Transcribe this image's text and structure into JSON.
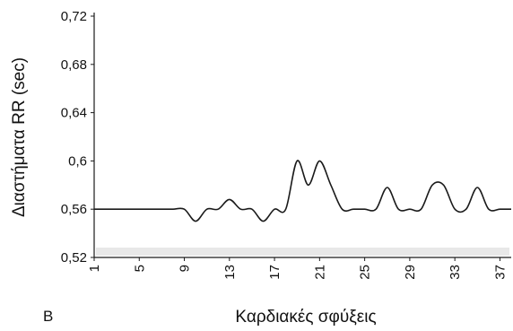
{
  "chart_data": {
    "type": "line",
    "panel_label": "B",
    "title": "",
    "xlabel": "Καρδιακές σφύξεις",
    "ylabel": "Διαστήματα RR (sec)",
    "ylim": [
      0.52,
      0.72
    ],
    "yticks": [
      "0,52",
      "0,56",
      "0,6",
      "0,64",
      "0,68",
      "0,72"
    ],
    "xlim": [
      1,
      38
    ],
    "xticks": [
      "1",
      "5",
      "9",
      "13",
      "17",
      "21",
      "25",
      "29",
      "33",
      "37"
    ],
    "grid": false,
    "colors": {
      "line": "#1a1a1a",
      "axis": "#1a1a1a",
      "baseline_band": "#d9d9d9"
    },
    "x": [
      1,
      2,
      3,
      4,
      5,
      6,
      7,
      8,
      9,
      10,
      11,
      12,
      13,
      14,
      15,
      16,
      17,
      18,
      19,
      20,
      21,
      22,
      23,
      24,
      25,
      26,
      27,
      28,
      29,
      30,
      31,
      32,
      33,
      34,
      35,
      36,
      37,
      38
    ],
    "values": [
      0.56,
      0.56,
      0.56,
      0.56,
      0.56,
      0.56,
      0.56,
      0.56,
      0.56,
      0.55,
      0.56,
      0.56,
      0.568,
      0.56,
      0.56,
      0.55,
      0.56,
      0.56,
      0.6,
      0.58,
      0.6,
      0.58,
      0.56,
      0.56,
      0.56,
      0.56,
      0.578,
      0.56,
      0.56,
      0.56,
      0.58,
      0.58,
      0.56,
      0.56,
      0.578,
      0.56,
      0.56,
      0.56
    ]
  }
}
